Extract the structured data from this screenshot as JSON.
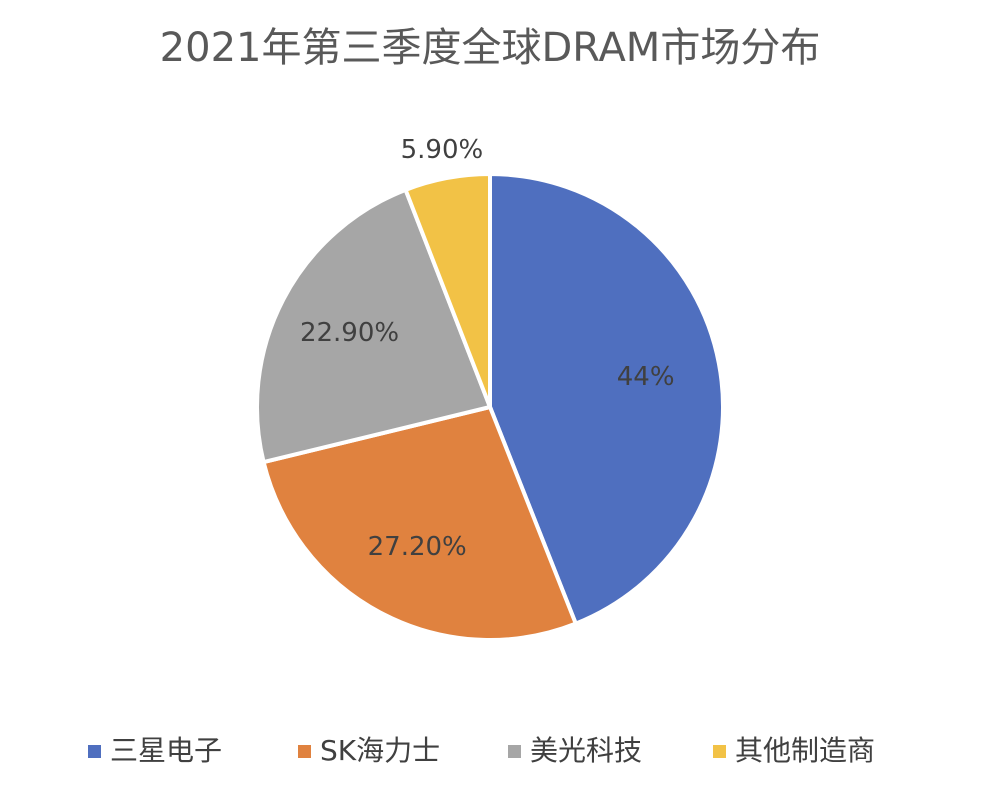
{
  "chart_data": {
    "type": "pie",
    "title": "2021年第三季度全球DRAM市场分布",
    "categories": [
      "三星电子",
      "SK海力士",
      "美光科技",
      "其他制造商"
    ],
    "values": [
      44,
      27.2,
      22.9,
      5.9
    ],
    "value_labels": [
      "44%",
      "27.20%",
      "22.90%",
      "5.90%"
    ],
    "colors": [
      "#4f6fbf",
      "#e0823f",
      "#a6a6a6",
      "#f2c246"
    ],
    "legend": "bottom"
  }
}
